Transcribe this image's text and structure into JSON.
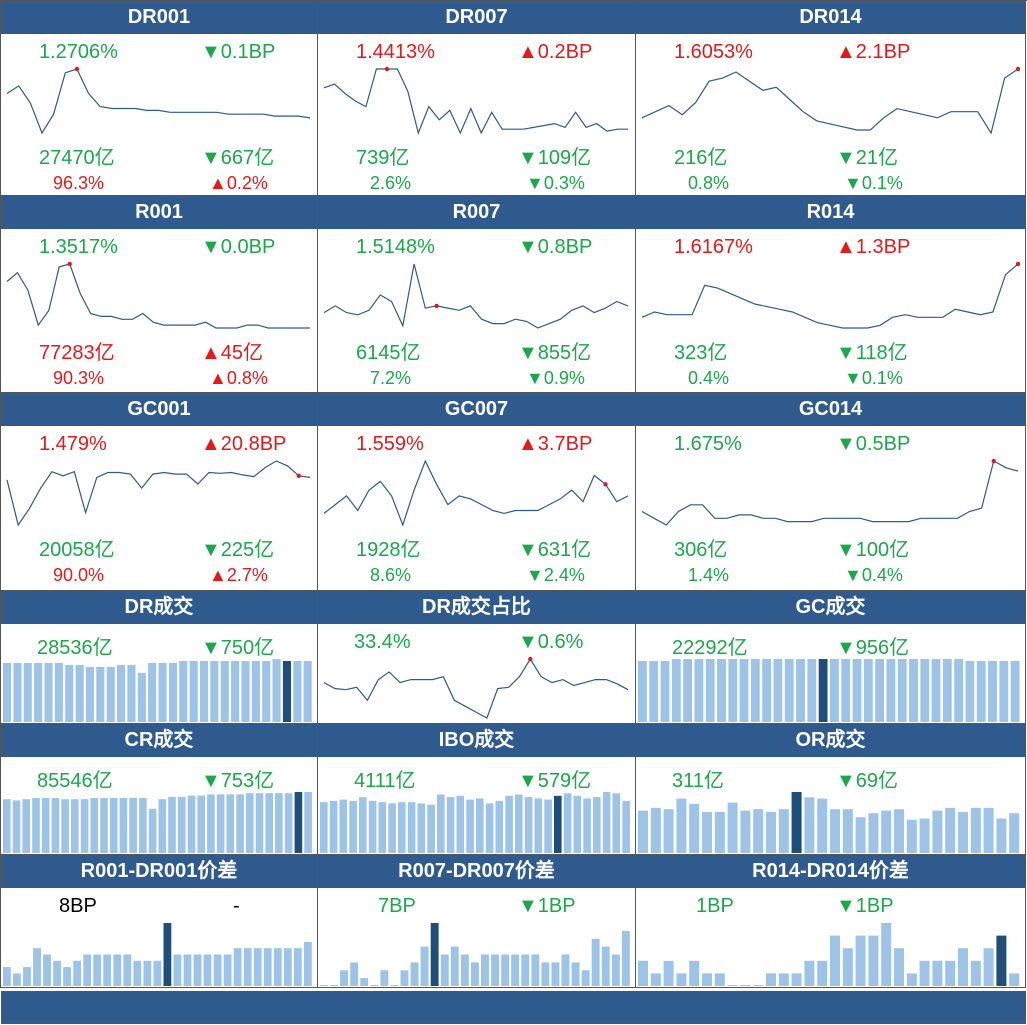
{
  "colors": {
    "header_bg": "#2e5a8e",
    "up": "#e21a1a",
    "down": "#1aa84a",
    "line": "#2e5a8e",
    "bar": "#9dc3e6",
    "bar_hi": "#1f4e79"
  },
  "panels": [
    {
      "title": "DR001",
      "rate": "1.2706%",
      "rate_color": "down",
      "rate_chg": "▼0.1BP",
      "rate_chg_color": "down",
      "vol": "27470亿",
      "vol_color": "down",
      "vol_chg": "▼667亿",
      "vol_chg_color": "down",
      "share": "96.3%",
      "share_color": "up",
      "share_chg": "▲0.2%",
      "share_chg_color": "up"
    },
    {
      "title": "DR007",
      "rate": "1.4413%",
      "rate_color": "up",
      "rate_chg": "▲0.2BP",
      "rate_chg_color": "up",
      "vol": "739亿",
      "vol_color": "down",
      "vol_chg": "▼109亿",
      "vol_chg_color": "down",
      "share": "2.6%",
      "share_color": "down",
      "share_chg": "▼0.3%",
      "share_chg_color": "down"
    },
    {
      "title": "DR014",
      "rate": "1.6053%",
      "rate_color": "up",
      "rate_chg": "▲2.1BP",
      "rate_chg_color": "up",
      "vol": "216亿",
      "vol_color": "down",
      "vol_chg": "▼21亿",
      "vol_chg_color": "down",
      "share": "0.8%",
      "share_color": "down",
      "share_chg": "▼0.1%",
      "share_chg_color": "down"
    },
    {
      "title": "R001",
      "rate": "1.3517%",
      "rate_color": "down",
      "rate_chg": "▼0.0BP",
      "rate_chg_color": "down",
      "vol": "77283亿",
      "vol_color": "up",
      "vol_chg": "▲45亿",
      "vol_chg_color": "up",
      "share": "90.3%",
      "share_color": "up",
      "share_chg": "▲0.8%",
      "share_chg_color": "up"
    },
    {
      "title": "R007",
      "rate": "1.5148%",
      "rate_color": "down",
      "rate_chg": "▼0.8BP",
      "rate_chg_color": "down",
      "vol": "6145亿",
      "vol_color": "down",
      "vol_chg": "▼855亿",
      "vol_chg_color": "down",
      "share": "7.2%",
      "share_color": "down",
      "share_chg": "▼0.9%",
      "share_chg_color": "down"
    },
    {
      "title": "R014",
      "rate": "1.6167%",
      "rate_color": "up",
      "rate_chg": "▲1.3BP",
      "rate_chg_color": "up",
      "vol": "323亿",
      "vol_color": "down",
      "vol_chg": "▼118亿",
      "vol_chg_color": "down",
      "share": "0.4%",
      "share_color": "down",
      "share_chg": "▼0.1%",
      "share_chg_color": "down"
    },
    {
      "title": "GC001",
      "rate": "1.479%",
      "rate_color": "up",
      "rate_chg": "▲20.8BP",
      "rate_chg_color": "up",
      "vol": "20058亿",
      "vol_color": "down",
      "vol_chg": "▼225亿",
      "vol_chg_color": "down",
      "share": "90.0%",
      "share_color": "up",
      "share_chg": "▲2.7%",
      "share_chg_color": "up"
    },
    {
      "title": "GC007",
      "rate": "1.559%",
      "rate_color": "up",
      "rate_chg": "▲3.7BP",
      "rate_chg_color": "up",
      "vol": "1928亿",
      "vol_color": "down",
      "vol_chg": "▼631亿",
      "vol_chg_color": "down",
      "share": "8.6%",
      "share_color": "down",
      "share_chg": "▼2.4%",
      "share_chg_color": "down"
    },
    {
      "title": "GC014",
      "rate": "1.675%",
      "rate_color": "down",
      "rate_chg": "▼0.5BP",
      "rate_chg_color": "down",
      "vol": "306亿",
      "vol_color": "down",
      "vol_chg": "▼100亿",
      "vol_chg_color": "down",
      "share": "1.4%",
      "share_color": "down",
      "share_chg": "▼0.4%",
      "share_chg_color": "down"
    }
  ],
  "small_panels": [
    {
      "title": "DR成交",
      "val": "28536亿",
      "val_color": "down",
      "chg": "▼750亿",
      "chg_color": "down",
      "kind": "bar"
    },
    {
      "title": "DR成交占比",
      "val": "33.4%",
      "val_color": "down",
      "chg": "▼0.6%",
      "chg_color": "down",
      "kind": "line"
    },
    {
      "title": "GC成交",
      "val": "22292亿",
      "val_color": "down",
      "chg": "▼956亿",
      "chg_color": "down",
      "kind": "bar"
    },
    {
      "title": "CR成交",
      "val": "85546亿",
      "val_color": "down",
      "chg": "▼753亿",
      "chg_color": "down",
      "kind": "bar"
    },
    {
      "title": "IBO成交",
      "val": "4111亿",
      "val_color": "down",
      "chg": "▼579亿",
      "chg_color": "down",
      "kind": "bar"
    },
    {
      "title": "OR成交",
      "val": "311亿",
      "val_color": "down",
      "chg": "▼69亿",
      "chg_color": "down",
      "kind": "bar"
    },
    {
      "title": "R001-DR001价差",
      "val": "8BP",
      "val_color": "black",
      "chg": "-",
      "chg_color": "black",
      "kind": "bar"
    },
    {
      "title": "R007-DR007价差",
      "val": "7BP",
      "val_color": "down",
      "chg": "▼1BP",
      "chg_color": "down",
      "kind": "bar"
    },
    {
      "title": "R014-DR014价差",
      "val": "1BP",
      "val_color": "down",
      "chg": "▼1BP",
      "chg_color": "down",
      "kind": "bar"
    }
  ],
  "chart_data": [
    {
      "type": "line",
      "title": "DR001",
      "values": [
        1.4,
        1.44,
        1.35,
        1.19,
        1.29,
        1.51,
        1.53,
        1.4,
        1.33,
        1.32,
        1.32,
        1.32,
        1.31,
        1.31,
        1.3,
        1.3,
        1.3,
        1.3,
        1.3,
        1.29,
        1.29,
        1.29,
        1.29,
        1.28,
        1.28,
        1.28,
        1.27
      ],
      "highlight_index": 6
    },
    {
      "type": "line",
      "title": "DR007",
      "values": [
        1.6,
        1.62,
        1.57,
        1.53,
        1.5,
        1.7,
        1.7,
        1.7,
        1.58,
        1.36,
        1.5,
        1.43,
        1.48,
        1.36,
        1.49,
        1.36,
        1.47,
        1.38,
        1.38,
        1.38,
        1.39,
        1.4,
        1.41,
        1.39,
        1.47,
        1.39,
        1.41,
        1.37,
        1.38,
        1.38
      ],
      "highlight_index": 6
    },
    {
      "type": "line",
      "title": "DR014",
      "values": [
        1.5,
        1.52,
        1.54,
        1.51,
        1.55,
        1.62,
        1.63,
        1.65,
        1.62,
        1.59,
        1.6,
        1.56,
        1.52,
        1.49,
        1.48,
        1.47,
        1.46,
        1.46,
        1.5,
        1.53,
        1.52,
        1.51,
        1.5,
        1.52,
        1.52,
        1.52,
        1.45,
        1.63,
        1.66
      ],
      "highlight_index": 28
    },
    {
      "type": "line",
      "title": "R001",
      "values": [
        1.49,
        1.52,
        1.46,
        1.34,
        1.39,
        1.54,
        1.55,
        1.45,
        1.38,
        1.37,
        1.37,
        1.36,
        1.36,
        1.38,
        1.35,
        1.34,
        1.34,
        1.34,
        1.34,
        1.35,
        1.33,
        1.33,
        1.33,
        1.34,
        1.34,
        1.33,
        1.33,
        1.33,
        1.33,
        1.33
      ],
      "highlight_index": 6
    },
    {
      "type": "line",
      "title": "R007",
      "values": [
        1.63,
        1.66,
        1.63,
        1.62,
        1.64,
        1.71,
        1.68,
        1.57,
        1.85,
        1.65,
        1.66,
        1.65,
        1.64,
        1.66,
        1.6,
        1.58,
        1.58,
        1.6,
        1.59,
        1.56,
        1.58,
        1.6,
        1.64,
        1.66,
        1.63,
        1.65,
        1.68,
        1.66
      ],
      "highlight_index": 10
    },
    {
      "type": "line",
      "title": "R014",
      "values": [
        1.52,
        1.54,
        1.53,
        1.53,
        1.53,
        1.64,
        1.63,
        1.61,
        1.59,
        1.57,
        1.56,
        1.55,
        1.54,
        1.52,
        1.5,
        1.49,
        1.48,
        1.48,
        1.48,
        1.49,
        1.52,
        1.53,
        1.52,
        1.52,
        1.52,
        1.55,
        1.54,
        1.53,
        1.54,
        1.68,
        1.72
      ],
      "highlight_index": 30
    },
    {
      "type": "line",
      "title": "GC001",
      "values": [
        1.55,
        1.0,
        1.2,
        1.45,
        1.65,
        1.6,
        1.65,
        1.15,
        1.58,
        1.64,
        1.64,
        1.62,
        1.45,
        1.62,
        1.64,
        1.62,
        1.62,
        1.5,
        1.64,
        1.63,
        1.64,
        1.61,
        1.59,
        1.7,
        1.78,
        1.72,
        1.6,
        1.58
      ],
      "highlight_index": 26
    },
    {
      "type": "line",
      "title": "GC007",
      "values": [
        1.52,
        1.55,
        1.58,
        1.53,
        1.6,
        1.63,
        1.58,
        1.48,
        1.6,
        1.7,
        1.62,
        1.55,
        1.58,
        1.57,
        1.55,
        1.53,
        1.52,
        1.53,
        1.53,
        1.53,
        1.55,
        1.57,
        1.6,
        1.56,
        1.65,
        1.62,
        1.56,
        1.58
      ],
      "highlight_index": 25
    },
    {
      "type": "line",
      "title": "GC014",
      "values": [
        1.6,
        1.58,
        1.56,
        1.6,
        1.62,
        1.62,
        1.58,
        1.58,
        1.59,
        1.59,
        1.58,
        1.58,
        1.57,
        1.57,
        1.57,
        1.58,
        1.58,
        1.58,
        1.58,
        1.57,
        1.57,
        1.57,
        1.57,
        1.58,
        1.58,
        1.58,
        1.58,
        1.6,
        1.61,
        1.75,
        1.73,
        1.72
      ],
      "highlight_index": 29
    },
    {
      "type": "bar",
      "title": "DR成交",
      "values": [
        30,
        30,
        30,
        30,
        30,
        30,
        29,
        29,
        28,
        28,
        28,
        29,
        29,
        25,
        30,
        30,
        30,
        31,
        31,
        31,
        31,
        31,
        31,
        31,
        31,
        31,
        32,
        31,
        31,
        31
      ],
      "highlight_index": 27
    },
    {
      "type": "line",
      "title": "DR成交占比",
      "values": [
        35.0,
        34.0,
        33.8,
        34.2,
        32.0,
        35.5,
        36.8,
        35.0,
        35.5,
        35.5,
        35.5,
        36.0,
        32.0,
        31.0,
        30.0,
        29.0,
        34.0,
        34.2,
        36.0,
        39.0,
        36.0,
        35.0,
        35.5,
        34.5,
        35.0,
        35.5,
        35.5,
        34.8,
        33.8
      ],
      "highlight_index": 19
    },
    {
      "type": "bar",
      "title": "GC成交",
      "values": [
        30,
        30,
        30,
        31,
        31,
        31,
        31,
        31,
        31,
        31,
        31,
        31,
        31,
        31,
        31,
        31,
        31,
        31,
        31,
        31,
        31,
        31,
        31,
        31,
        31,
        31,
        31,
        31,
        31,
        30,
        30,
        30,
        30,
        30
      ],
      "highlight_index": 16
    },
    {
      "type": "bar",
      "title": "CR成交",
      "values": [
        45,
        44,
        45,
        46,
        46,
        46,
        45,
        45,
        45,
        46,
        46,
        46,
        46,
        46,
        46,
        37,
        45,
        47,
        47,
        48,
        48,
        49,
        49,
        49,
        49,
        50,
        50,
        50,
        50,
        50,
        51,
        51
      ],
      "highlight_index": 30
    },
    {
      "type": "bar",
      "title": "IBO成交",
      "values": [
        4.0,
        4.1,
        4.2,
        4.1,
        4.4,
        4.1,
        4.0,
        3.9,
        4.0,
        4.0,
        3.9,
        3.8,
        4.6,
        4.4,
        4.5,
        4.2,
        4.3,
        3.9,
        4.1,
        4.5,
        4.6,
        4.4,
        4.3,
        4.2,
        4.5,
        4.7,
        4.5,
        4.3,
        4.4,
        4.8,
        4.7,
        4.1
      ],
      "highlight_index": 24
    },
    {
      "type": "bar",
      "title": "OR成交",
      "values": [
        320,
        340,
        330,
        410,
        370,
        310,
        310,
        380,
        320,
        330,
        310,
        330,
        460,
        420,
        410,
        330,
        330,
        270,
        300,
        320,
        330,
        250,
        260,
        320,
        340,
        310,
        340,
        340,
        260,
        300
      ],
      "highlight_index": 12
    },
    {
      "type": "bar",
      "title": "R001-DR001价差",
      "values": [
        3,
        2,
        3,
        6,
        5,
        4,
        3,
        4,
        5,
        5,
        5,
        5,
        5,
        4,
        4,
        4,
        10,
        5,
        5,
        5,
        5,
        5,
        5,
        6,
        6,
        6,
        6,
        6,
        6,
        6,
        7
      ],
      "highlight_index": 16
    },
    {
      "type": "bar",
      "title": "R007-DR007价差",
      "values": [
        0,
        0,
        2,
        3,
        1,
        0,
        2,
        0,
        2,
        3,
        5,
        8,
        4,
        5,
        4,
        3,
        4,
        4,
        4,
        4,
        4,
        4,
        3,
        3,
        4,
        3,
        2,
        6,
        5,
        4,
        7
      ],
      "highlight_index": 11
    },
    {
      "type": "bar",
      "title": "R014-DR014价差",
      "values": [
        2,
        1,
        2,
        1,
        2,
        1,
        1,
        0,
        0,
        0,
        1,
        1,
        1,
        2,
        2,
        4,
        3,
        4,
        4,
        5,
        3,
        1,
        2,
        2,
        2,
        3,
        2,
        3,
        4,
        1
      ],
      "highlight_index": 28
    }
  ]
}
